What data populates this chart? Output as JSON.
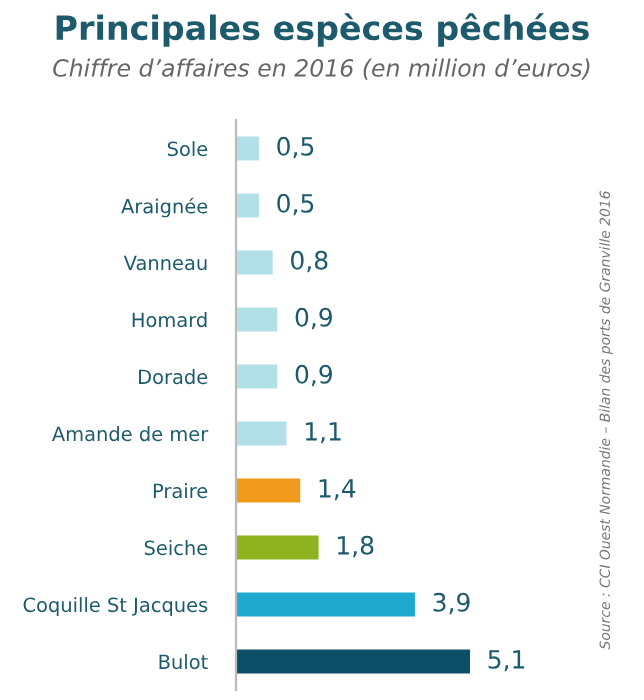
{
  "chart_data": {
    "type": "bar",
    "orientation": "horizontal",
    "title": "Principales espèces pêchées",
    "subtitle": "Chiffre d’affaires en 2016 (en million d’euros)",
    "categories": [
      "Sole",
      "Araignée",
      "Vanneau",
      "Homard",
      "Dorade",
      "Amande de mer",
      "Praire",
      "Seiche",
      "Coquille St Jacques",
      "Bulot"
    ],
    "values": [
      0.5,
      0.5,
      0.8,
      0.9,
      0.9,
      1.1,
      1.4,
      1.8,
      3.9,
      5.1
    ],
    "colors": [
      "#b3dfe9",
      "#b3dfe9",
      "#b3dfe9",
      "#b3dfe9",
      "#b3dfe9",
      "#b3dfe9",
      "#f29a1c",
      "#8fb320",
      "#20a9cf",
      "#0d4f66"
    ],
    "value_labels": [
      "0,5",
      "0,5",
      "0,8",
      "0,9",
      "0,9",
      "1,1",
      "1,4",
      "1,8",
      "3,9",
      "5,1"
    ],
    "annotations": [
      "Source : CCI Ouest Normandie – Bilan des ports de Granville 2016"
    ]
  }
}
